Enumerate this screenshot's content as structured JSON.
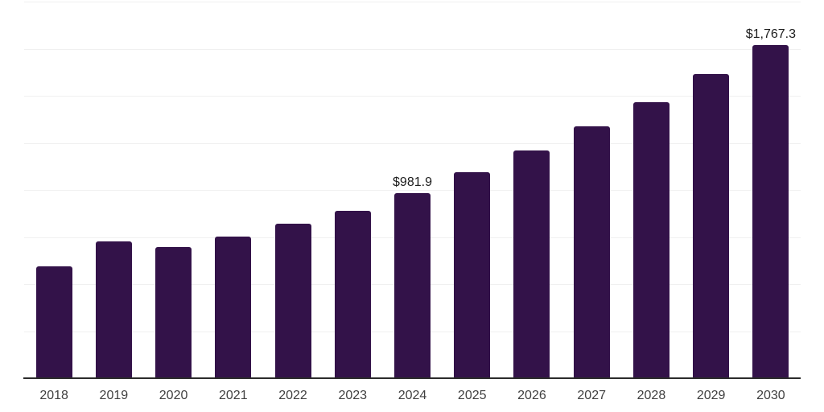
{
  "page": {
    "background_color": "#ffffff"
  },
  "chart_data": {
    "type": "bar",
    "title": "",
    "xlabel": "",
    "ylabel": "",
    "categories": [
      "2018",
      "2019",
      "2020",
      "2021",
      "2022",
      "2023",
      "2024",
      "2025",
      "2026",
      "2027",
      "2028",
      "2029",
      "2030"
    ],
    "values": [
      592,
      728,
      695,
      754,
      822,
      888,
      981.9,
      1094,
      1208,
      1336,
      1465,
      1615,
      1767.3
    ],
    "data_labels": [
      {
        "category": "2024",
        "text": "$981.9"
      },
      {
        "category": "2030",
        "text": "$1,767.3"
      }
    ],
    "ylim": [
      0,
      2000
    ],
    "gridline_step": 250,
    "grid": "horizontal-only",
    "legend": "none",
    "bar_color": "#331249",
    "gridline_color": "#f0f0f0",
    "axis_line_color": "#2b2b2b",
    "tick_label_color": "#404040",
    "data_label_color": "#1c1c1c"
  }
}
